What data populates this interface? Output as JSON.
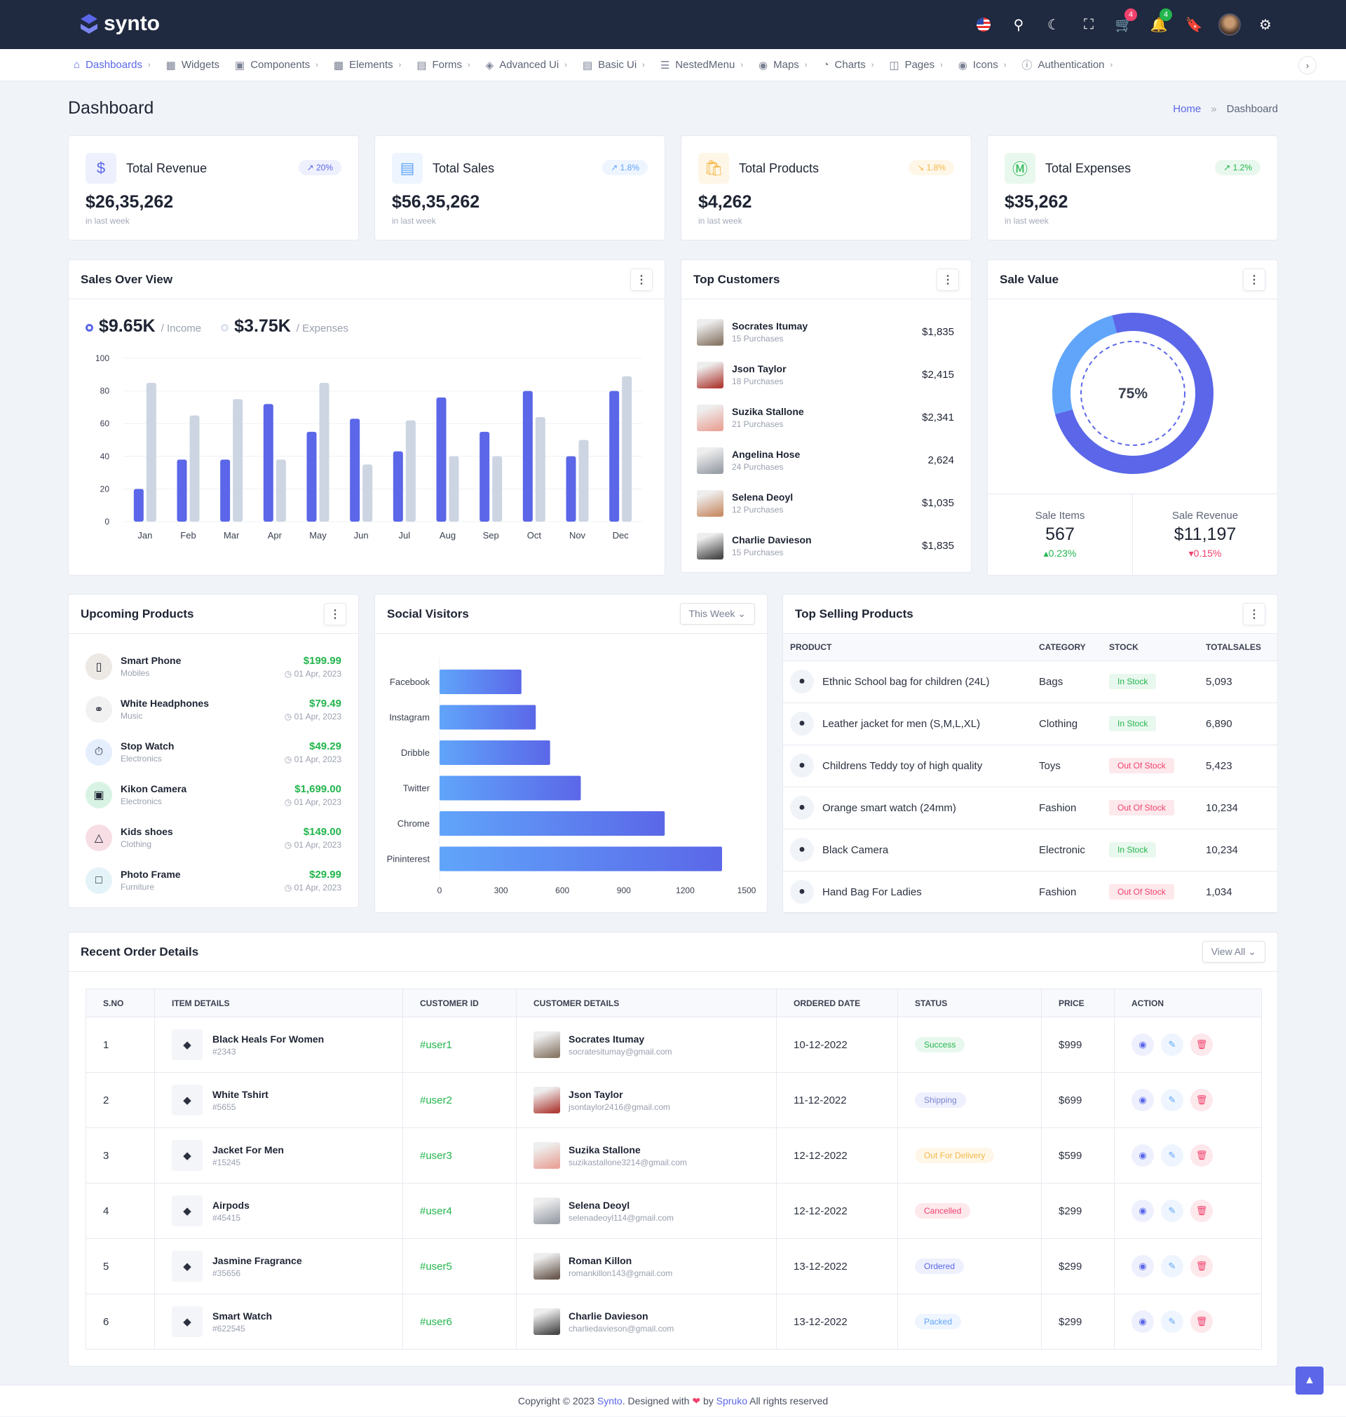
{
  "header": {
    "brand": "synto",
    "cart_count": "4",
    "notif_count": "4"
  },
  "nav": [
    {
      "label": "Dashboards",
      "icon": "home-icon",
      "active": true
    },
    {
      "label": "Widgets",
      "icon": "widgets-icon"
    },
    {
      "label": "Components",
      "icon": "components-icon"
    },
    {
      "label": "Elements",
      "icon": "chip-icon"
    },
    {
      "label": "Forms",
      "icon": "file-icon"
    },
    {
      "label": "Advanced Ui",
      "icon": "layers-icon"
    },
    {
      "label": "Basic Ui",
      "icon": "list-icon"
    },
    {
      "label": "NestedMenu",
      "icon": "tree-icon"
    },
    {
      "label": "Maps",
      "icon": "map-pin-icon"
    },
    {
      "label": "Charts",
      "icon": "pie-icon"
    },
    {
      "label": "Pages",
      "icon": "book-icon"
    },
    {
      "label": "Icons",
      "icon": "globe-icon"
    },
    {
      "label": "Authentication",
      "icon": "info-icon"
    }
  ],
  "page": {
    "title": "Dashboard",
    "breadcrumb": [
      "Home",
      "Dashboard"
    ]
  },
  "stats": [
    {
      "title": "Total Revenue",
      "value": "$26,35,262",
      "sub": "in last week",
      "change": "20%",
      "color": "#5b67e8",
      "bg": "#eef0fd",
      "icon": "receipt-dollar-icon",
      "trend": "up"
    },
    {
      "title": "Total Sales",
      "value": "$56,35,262",
      "sub": "in last week",
      "change": "1.8%",
      "color": "#60a5fa",
      "bg": "#eef5ff",
      "icon": "receipt-icon",
      "trend": "up"
    },
    {
      "title": "Total Products",
      "value": "$4,262",
      "sub": "in last week",
      "change": "1.8%",
      "color": "#f5b849",
      "bg": "#fef7e8",
      "icon": "shopping-bag-icon",
      "trend": "down"
    },
    {
      "title": "Total Expenses",
      "value": "$35,262",
      "sub": "in last week",
      "change": "1.2%",
      "color": "#23b54d",
      "bg": "#e9f8ee",
      "icon": "dollar-circle-icon",
      "trend": "up"
    }
  ],
  "sales_overview": {
    "title": "Sales Over View",
    "income_value": "$9.65K",
    "income_label": "/ Income",
    "expense_value": "$3.75K",
    "expense_label": "/ Expenses"
  },
  "chart_data": [
    {
      "type": "bar",
      "categories": [
        "Jan",
        "Feb",
        "Mar",
        "Apr",
        "May",
        "Jun",
        "Jul",
        "Aug",
        "Sep",
        "Oct",
        "Nov",
        "Dec"
      ],
      "series": [
        {
          "name": "Income",
          "values": [
            20,
            38,
            38,
            72,
            55,
            63,
            43,
            76,
            55,
            80,
            40,
            80
          ],
          "color": "#5b67e8"
        },
        {
          "name": "Expenses",
          "values": [
            85,
            65,
            75,
            38,
            85,
            35,
            62,
            40,
            40,
            64,
            50,
            89
          ],
          "color": "#ccd5e1"
        }
      ],
      "ylim": [
        0,
        100
      ],
      "yticks": [
        0,
        20,
        40,
        60,
        80,
        100
      ],
      "grid": true
    },
    {
      "type": "bar",
      "orientation": "horizontal",
      "title": "Social Visitors",
      "categories": [
        "Facebook",
        "Instagram",
        "Dribble",
        "Twitter",
        "Chrome",
        "Pininterest"
      ],
      "values": [
        400,
        470,
        540,
        690,
        1100,
        1380
      ],
      "xlim": [
        0,
        1500
      ],
      "xticks": [
        0,
        300,
        600,
        900,
        1200,
        1500
      ]
    },
    {
      "type": "pie",
      "title": "Sale Value",
      "center_label": "75%",
      "values": [
        75,
        25
      ],
      "colors": [
        "#5b67e8",
        "#60a5fa"
      ]
    }
  ],
  "top_customers": {
    "title": "Top Customers",
    "items": [
      {
        "name": "Socrates Itumay",
        "sub": "15 Purchases",
        "amount": "$1,835"
      },
      {
        "name": "Json Taylor",
        "sub": "18 Purchases",
        "amount": "$2,415"
      },
      {
        "name": "Suzika Stallone",
        "sub": "21 Purchases",
        "amount": "$2,341"
      },
      {
        "name": "Angelina Hose",
        "sub": "24 Purchases",
        "amount": "2,624"
      },
      {
        "name": "Selena Deoyl",
        "sub": "12 Purchases",
        "amount": "$1,035"
      },
      {
        "name": "Charlie Davieson",
        "sub": "15 Purchases",
        "amount": "$1,835"
      }
    ]
  },
  "sale_value": {
    "title": "Sale Value",
    "items_label": "Sale Items",
    "items_value": "567",
    "items_change": "0.23%",
    "revenue_label": "Sale Revenue",
    "revenue_value": "$11,197",
    "revenue_change": "0.15%"
  },
  "upcoming": {
    "title": "Upcoming Products",
    "items": [
      {
        "name": "Smart Phone",
        "cat": "Mobiles",
        "price": "$199.99",
        "date": "01 Apr, 2023"
      },
      {
        "name": "White Headphones",
        "cat": "Music",
        "price": "$79.49",
        "date": "01 Apr, 2023"
      },
      {
        "name": "Stop Watch",
        "cat": "Electronics",
        "price": "$49.29",
        "date": "01 Apr, 2023"
      },
      {
        "name": "Kikon Camera",
        "cat": "Electronics",
        "price": "$1,699.00",
        "date": "01 Apr, 2023"
      },
      {
        "name": "Kids shoes",
        "cat": "Clothing",
        "price": "$149.00",
        "date": "01 Apr, 2023"
      },
      {
        "name": "Photo Frame",
        "cat": "Furniture",
        "price": "$29.99",
        "date": "01 Apr, 2023"
      }
    ]
  },
  "social": {
    "title": "Social Visitors",
    "filter": "This Week"
  },
  "top_selling": {
    "title": "Top Selling Products",
    "columns": [
      "PRODUCT",
      "CATEGORY",
      "STOCK",
      "TOTALSALES"
    ],
    "rows": [
      {
        "product": "Ethnic School bag for children (24L)",
        "category": "Bags",
        "stock": "In Stock",
        "sales": "5,093"
      },
      {
        "product": "Leather jacket for men (S,M,L,XL)",
        "category": "Clothing",
        "stock": "In Stock",
        "sales": "6,890"
      },
      {
        "product": "Childrens Teddy toy of high quality",
        "category": "Toys",
        "stock": "Out Of Stock",
        "sales": "5,423"
      },
      {
        "product": "Orange smart watch (24mm)",
        "category": "Fashion",
        "stock": "Out Of Stock",
        "sales": "10,234"
      },
      {
        "product": "Black Camera",
        "category": "Electronic",
        "stock": "In Stock",
        "sales": "10,234"
      },
      {
        "product": "Hand Bag For Ladies",
        "category": "Fashion",
        "stock": "Out Of Stock",
        "sales": "1,034"
      }
    ]
  },
  "orders": {
    "title": "Recent Order Details",
    "view_all": "View All",
    "columns": [
      "S.NO",
      "ITEM DETAILS",
      "CUSTOMER ID",
      "CUSTOMER DETAILS",
      "ORDERED DATE",
      "STATUS",
      "PRICE",
      "ACTION"
    ],
    "rows": [
      {
        "no": "1",
        "item": "Black Heals For Women",
        "item_id": "#2343",
        "cid": "#user1",
        "cname": "Socrates Itumay",
        "email": "socratesitumay@gmail.com",
        "date": "10-12-2022",
        "status": "Success",
        "price": "$999"
      },
      {
        "no": "2",
        "item": "White Tshirt",
        "item_id": "#5655",
        "cid": "#user2",
        "cname": "Json Taylor",
        "email": "jsontaylor2416@gmail.com",
        "date": "11-12-2022",
        "status": "Shipping",
        "price": "$699"
      },
      {
        "no": "3",
        "item": "Jacket For Men",
        "item_id": "#15245",
        "cid": "#user3",
        "cname": "Suzika Stallone",
        "email": "suzikastallone3214@gmail.com",
        "date": "12-12-2022",
        "status": "Out For Delivery",
        "price": "$599"
      },
      {
        "no": "4",
        "item": "Airpods",
        "item_id": "#45415",
        "cid": "#user4",
        "cname": "Selena Deoyl",
        "email": "selenadeoyl114@gmail.com",
        "date": "12-12-2022",
        "status": "Cancelled",
        "price": "$299"
      },
      {
        "no": "5",
        "item": "Jasmine Fragrance",
        "item_id": "#35656",
        "cid": "#user5",
        "cname": "Roman Killon",
        "email": "romankillon143@gmail.com",
        "date": "13-12-2022",
        "status": "Ordered",
        "price": "$299"
      },
      {
        "no": "6",
        "item": "Smart Watch",
        "item_id": "#622545",
        "cid": "#user6",
        "cname": "Charlie Davieson",
        "email": "charliedavieson@gmail.com",
        "date": "13-12-2022",
        "status": "Packed",
        "price": "$299"
      }
    ]
  },
  "footer": {
    "prefix": "Copyright © 2023",
    "brand": "Synto",
    "mid": ". Designed with",
    "by": "by",
    "company": "Spruko",
    "suffix": "All rights reserved"
  }
}
